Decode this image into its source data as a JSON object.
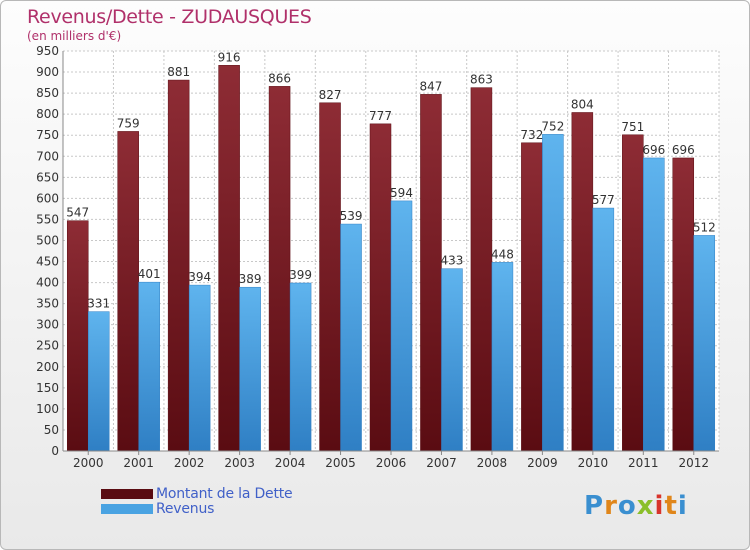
{
  "title": "Revenus/Dette - ZUDAUSQUES",
  "subtitle": "(en milliers d'€)",
  "logo_text": "Proxiti",
  "colors": {
    "title": "#b0306a",
    "debt_bar": "#7a1e28",
    "revenue_bar": "#4aa3e2",
    "legend_text": "#4060c8"
  },
  "legend": [
    {
      "label": "Montant de la Dette",
      "color": "#5a0c12"
    },
    {
      "label": "Revenus",
      "color": "#4aa3e2"
    }
  ],
  "chart_data": {
    "type": "bar",
    "title": "Revenus/Dette - ZUDAUSQUES",
    "subtitle": "(en milliers d'€)",
    "categories": [
      "2000",
      "2001",
      "2002",
      "2003",
      "2004",
      "2005",
      "2006",
      "2007",
      "2008",
      "2009",
      "2010",
      "2011",
      "2012"
    ],
    "series": [
      {
        "name": "Montant de la Dette",
        "values": [
          547,
          759,
          881,
          916,
          866,
          827,
          777,
          847,
          863,
          732,
          804,
          751,
          696
        ]
      },
      {
        "name": "Revenus",
        "values": [
          331,
          401,
          394,
          389,
          399,
          539,
          594,
          433,
          448,
          752,
          577,
          696,
          512
        ]
      }
    ],
    "ylim": [
      0,
      950
    ],
    "yticks": [
      0,
      50,
      100,
      150,
      200,
      250,
      300,
      350,
      400,
      450,
      500,
      550,
      600,
      650,
      700,
      750,
      800,
      850,
      900,
      950
    ],
    "grid": true,
    "legend_position": "bottom-left"
  }
}
